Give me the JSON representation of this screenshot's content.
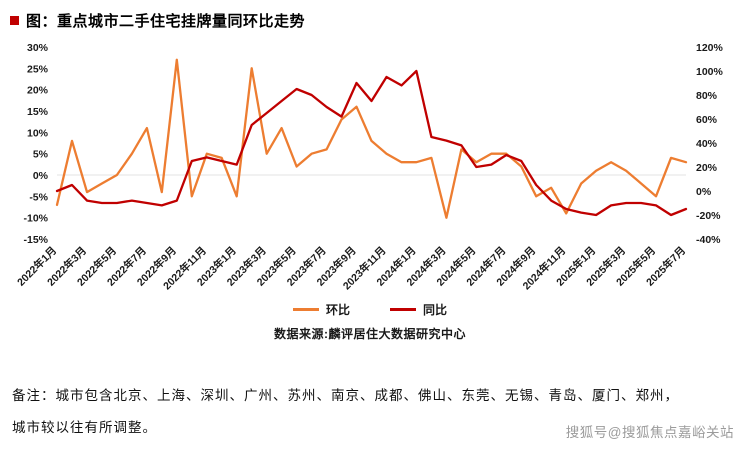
{
  "title": {
    "text": "图：重点城市二手住宅挂牌量同环比走势",
    "bullet_color": "#c00000"
  },
  "chart_data": {
    "type": "line",
    "title": "重点城市二手住宅挂牌量同环比走势",
    "x": [
      "2022年1月",
      "2022年2月",
      "2022年3月",
      "2022年4月",
      "2022年5月",
      "2022年6月",
      "2022年7月",
      "2022年8月",
      "2022年9月",
      "2022年10月",
      "2022年11月",
      "2022年12月",
      "2023年1月",
      "2023年2月",
      "2023年3月",
      "2023年4月",
      "2023年5月",
      "2023年6月",
      "2023年7月",
      "2023年8月",
      "2023年9月",
      "2023年10月",
      "2023年11月",
      "2023年12月",
      "2024年1月",
      "2024年2月",
      "2024年3月",
      "2024年4月",
      "2024年5月",
      "2024年6月",
      "2024年7月",
      "2024年8月",
      "2024年9月",
      "2024年10月",
      "2024年11月",
      "2024年12月",
      "2025年1月",
      "2025年2月",
      "2025年3月",
      "2025年4月",
      "2025年5月",
      "2025年6月",
      "2025年7月"
    ],
    "x_tick_every": 2,
    "series": [
      {
        "name": "环比",
        "axis": "left",
        "color": "#ED7D31",
        "values": [
          -7,
          8,
          -4,
          -2,
          0,
          5,
          11,
          -4,
          27,
          -5,
          5,
          4,
          -5,
          25,
          5,
          11,
          2,
          5,
          6,
          13,
          16,
          8,
          5,
          3,
          3,
          4,
          -10,
          6,
          3,
          5,
          5,
          2,
          -5,
          -3,
          -9,
          -2,
          1,
          3,
          1,
          -2,
          -5,
          4,
          3
        ]
      },
      {
        "name": "同比",
        "axis": "right",
        "color": "#C00000",
        "values": [
          0,
          5,
          -8,
          -10,
          -10,
          -8,
          -10,
          -12,
          -8,
          25,
          28,
          25,
          22,
          55,
          65,
          75,
          85,
          80,
          70,
          62,
          90,
          75,
          95,
          88,
          100,
          45,
          42,
          38,
          20,
          22,
          30,
          25,
          5,
          -8,
          -15,
          -18,
          -20,
          -12,
          -10,
          -10,
          -12,
          -20,
          -15
        ]
      }
    ],
    "left_axis": {
      "min": -15,
      "max": 30,
      "ticks": [
        30,
        25,
        20,
        15,
        10,
        5,
        0,
        -5,
        -10,
        -15
      ],
      "suffix": "%"
    },
    "right_axis": {
      "min": -40,
      "max": 120,
      "ticks": [
        120,
        100,
        80,
        60,
        40,
        20,
        0,
        -20,
        -40
      ],
      "suffix": "%"
    },
    "grid": "zero-line-only",
    "legend_position": "bottom-center",
    "source": "数据来源:麟评居住大数据研究中心"
  },
  "footer": {
    "note_line1": "备注：城市包含北京、上海、深圳、广州、苏州、南京、成都、佛山、东莞、无锡、青岛、厦门、郑州，",
    "note_line2": "城市较以往有所调整。",
    "watermark": "搜狐号@搜狐焦点嘉峪关站"
  }
}
